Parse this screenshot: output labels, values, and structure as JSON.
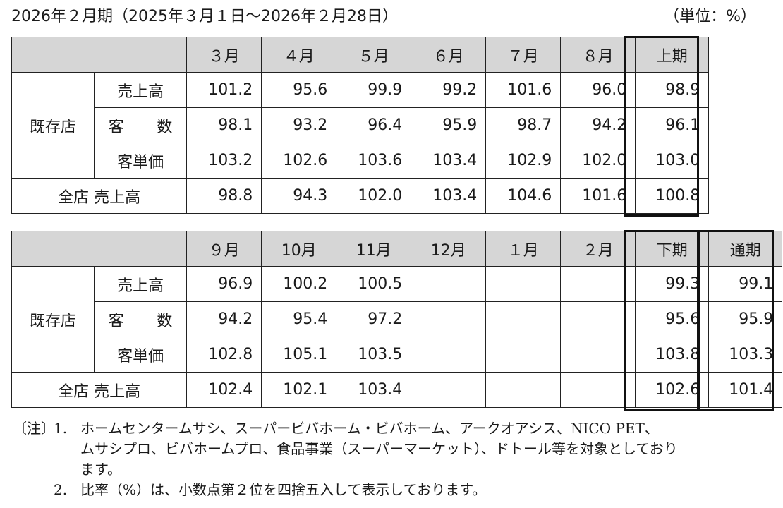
{
  "header": {
    "title": "2026年２月期（2025年３月１日～2026年２月28日）",
    "unit": "（単位：%）"
  },
  "labels": {
    "existing_stores": "既存店",
    "sales": "売上高",
    "customers": "客 数",
    "unit_price": "客単価",
    "all_stores_sales": "全店 売上高"
  },
  "table1": {
    "columns": [
      "３月",
      "４月",
      "５月",
      "６月",
      "７月",
      "８月",
      "上期"
    ],
    "rows": {
      "sales": [
        "101.2",
        "95.6",
        "99.9",
        "99.2",
        "101.6",
        "96.0",
        "98.9"
      ],
      "customers": [
        "98.1",
        "93.2",
        "96.4",
        "95.9",
        "98.7",
        "94.2",
        "96.1"
      ],
      "unit_price": [
        "103.2",
        "102.6",
        "103.6",
        "103.4",
        "102.9",
        "102.0",
        "103.0"
      ],
      "all_stores_sales": [
        "98.8",
        "94.3",
        "102.0",
        "103.4",
        "104.6",
        "101.6",
        "100.8"
      ]
    }
  },
  "table2": {
    "columns": [
      "９月",
      "10月",
      "11月",
      "12月",
      "１月",
      "２月",
      "下期",
      "通期"
    ],
    "rows": {
      "sales": [
        "96.9",
        "100.2",
        "100.5",
        "",
        "",
        "",
        "99.3",
        "99.1"
      ],
      "customers": [
        "94.2",
        "95.4",
        "97.2",
        "",
        "",
        "",
        "95.6",
        "95.9"
      ],
      "unit_price": [
        "102.8",
        "105.1",
        "103.5",
        "",
        "",
        "",
        "103.8",
        "103.3"
      ],
      "all_stores_sales": [
        "102.4",
        "102.1",
        "103.4",
        "",
        "",
        "",
        "102.6",
        "101.4"
      ]
    }
  },
  "notes": {
    "tag": "〔注〕",
    "note1_num": "1.",
    "note1_line1": "ホームセンタームサシ、スーパービバホーム・ビバホーム、アークオアシス、NICO PET、",
    "note1_line2": "ムサシプロ、ビバホームプロ、食品事業（スーパーマーケット）、ドトール等を対象としており",
    "note1_line3": "ます。",
    "note2_num": "2.",
    "note2_text": "比率（%）は、小数点第２位を四捨五入して表示しております。"
  }
}
